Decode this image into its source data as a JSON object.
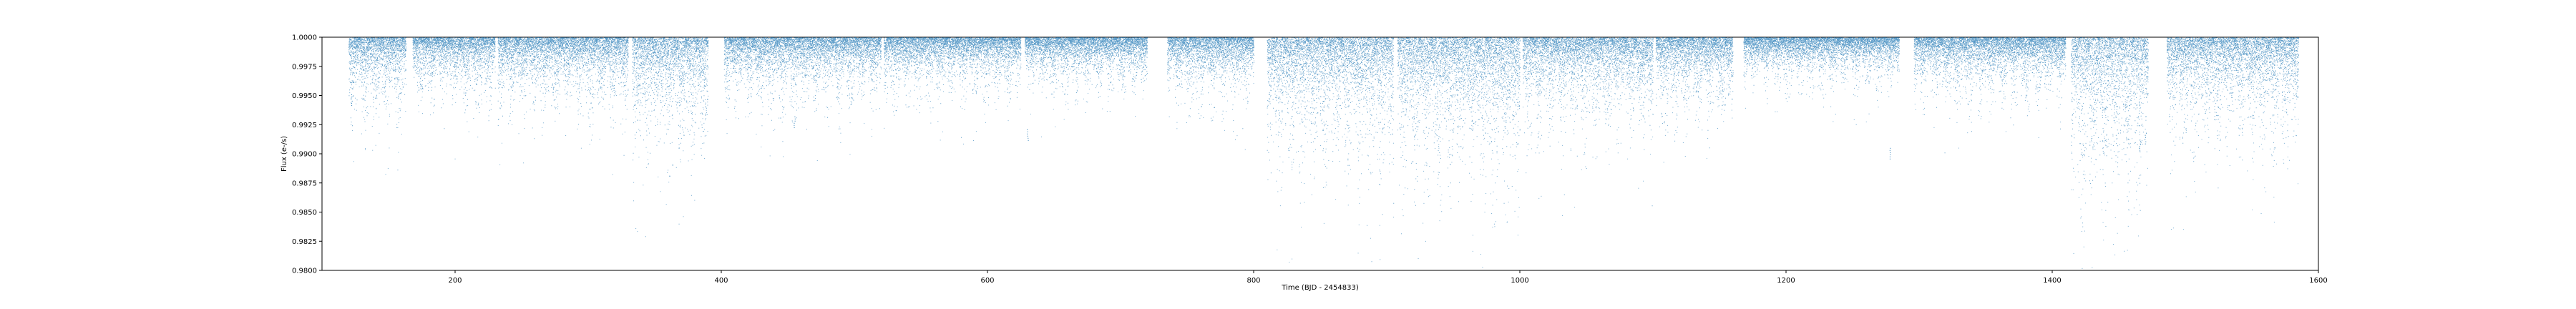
{
  "chart_data": {
    "type": "scatter",
    "title": "",
    "xlabel": "Time (BJD - 2454833)",
    "ylabel": "Flux (e-/s)",
    "xlim": [
      100,
      1600
    ],
    "ylim": [
      0.98,
      1.0
    ],
    "x_ticks": [
      200,
      400,
      600,
      800,
      1000,
      1200,
      1400,
      1600
    ],
    "x_tick_labels": [
      "200",
      "400",
      "600",
      "800",
      "1000",
      "1200",
      "1400",
      "1600"
    ],
    "y_ticks": [
      0.98,
      0.9825,
      0.985,
      0.9875,
      0.99,
      0.9925,
      0.995,
      0.9975,
      1.0
    ],
    "y_tick_labels": [
      "0.9800",
      "0.9825",
      "0.9850",
      "0.9875",
      "0.9900",
      "0.9925",
      "0.9950",
      "0.9975",
      "1.0000"
    ],
    "grid": false,
    "marker_color": "#1f77b4",
    "segments": [
      {
        "x_start": 120,
        "x_end": 163,
        "median_dip": 0.0015
      },
      {
        "x_start": 168,
        "x_end": 230,
        "median_dip": 0.0012
      },
      {
        "x_start": 232,
        "x_end": 330,
        "median_dip": 0.0014
      },
      {
        "x_start": 333,
        "x_end": 390,
        "median_dip": 0.0022
      },
      {
        "x_start": 402,
        "x_end": 520,
        "median_dip": 0.0013
      },
      {
        "x_start": 522,
        "x_end": 625,
        "median_dip": 0.0011
      },
      {
        "x_start": 628,
        "x_end": 720,
        "median_dip": 0.001
      },
      {
        "x_start": 735,
        "x_end": 800,
        "median_dip": 0.0012
      },
      {
        "x_start": 810,
        "x_end": 905,
        "median_dip": 0.0025
      },
      {
        "x_start": 908,
        "x_end": 1000,
        "median_dip": 0.0028
      },
      {
        "x_start": 1002,
        "x_end": 1100,
        "median_dip": 0.0018
      },
      {
        "x_start": 1102,
        "x_end": 1160,
        "median_dip": 0.0015
      },
      {
        "x_start": 1168,
        "x_end": 1285,
        "median_dip": 0.0009
      },
      {
        "x_start": 1296,
        "x_end": 1410,
        "median_dip": 0.0012
      },
      {
        "x_start": 1414,
        "x_end": 1472,
        "median_dip": 0.003
      },
      {
        "x_start": 1486,
        "x_end": 1585,
        "median_dip": 0.002
      }
    ],
    "deep_points": [
      {
        "x": 122,
        "y": 0.9951
      },
      {
        "x": 455,
        "y": 0.9932
      },
      {
        "x": 630,
        "y": 0.9921
      },
      {
        "x": 1278,
        "y": 0.9905
      },
      {
        "x": 1466,
        "y": 0.9912
      },
      {
        "x": 1470,
        "y": 0.9918
      }
    ]
  }
}
